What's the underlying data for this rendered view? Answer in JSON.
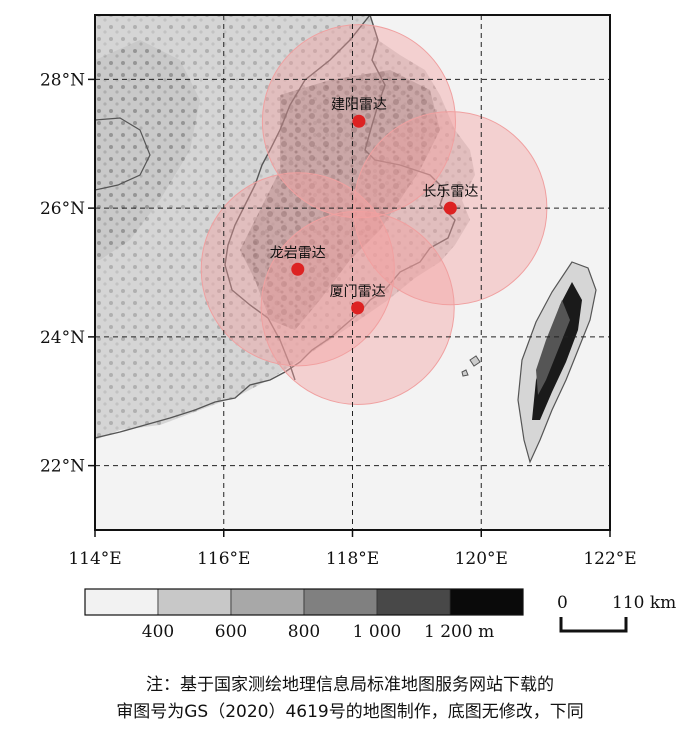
{
  "map": {
    "lon_range": [
      114,
      122
    ],
    "lat_range": [
      21,
      29
    ],
    "lat_ticks": [
      {
        "lat": 28,
        "label": "28°N"
      },
      {
        "lat": 26,
        "label": "26°N"
      },
      {
        "lat": 24,
        "label": "24°N"
      },
      {
        "lat": 22,
        "label": "22°N"
      }
    ],
    "lon_ticks": [
      {
        "lon": 114,
        "label": "114°E"
      },
      {
        "lon": 116,
        "label": "116°E"
      },
      {
        "lon": 118,
        "label": "118°E"
      },
      {
        "lon": 120,
        "label": "120°E"
      },
      {
        "lon": 122,
        "label": "122°E"
      }
    ],
    "grid": "dashed",
    "radars": [
      {
        "name": "建阳雷达",
        "lon": 118.1,
        "lat": 27.35,
        "radius_km": 150
      },
      {
        "name": "长乐雷达",
        "lon": 119.52,
        "lat": 26.0,
        "radius_km": 150
      },
      {
        "name": "龙岩雷达",
        "lon": 117.15,
        "lat": 25.05,
        "radius_km": 150
      },
      {
        "name": "厦门雷达",
        "lon": 118.08,
        "lat": 24.45,
        "radius_km": 150
      }
    ],
    "colors": {
      "radar_point": "#dd2222",
      "coverage_fill": "#f4a0a0",
      "coverage_stroke": "#f0a0a0",
      "coastline": "#555555"
    }
  },
  "elevation_legend": {
    "colors": [
      "#f2f2f2",
      "#c8c8c8",
      "#a8a8a8",
      "#808080",
      "#484848",
      "#0a0a0a"
    ],
    "labels": [
      "400",
      "600",
      "800",
      "1 000",
      "1 200 m"
    ]
  },
  "scale_bar": {
    "zero_label": "0",
    "end_label": "110 km"
  },
  "note": {
    "line1": "注：基于国家测绘地理信息局标准地图服务网站下载的",
    "line2": "审图号为GS（2020）4619号的地图制作，底图无修改，下同"
  }
}
